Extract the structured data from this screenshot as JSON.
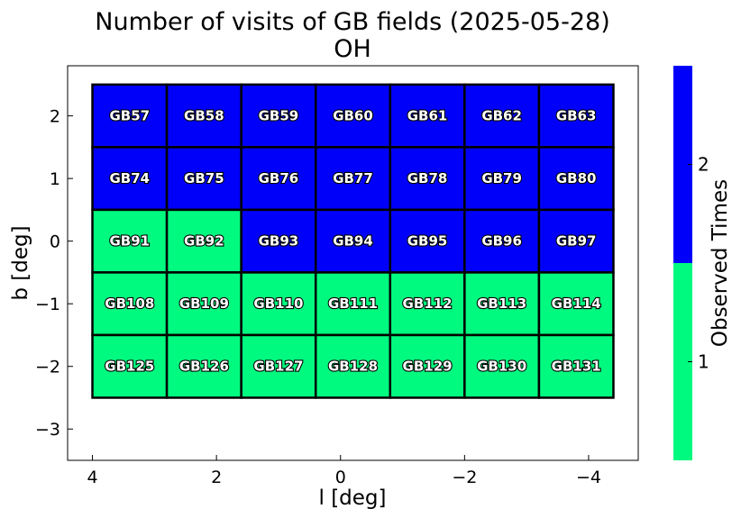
{
  "chart_data": {
    "type": "heatmap",
    "title": "Number of visits of GB fields (2025-05-28)",
    "subtitle": "OH",
    "xlabel": "l [deg]",
    "ylabel": "b [deg]",
    "xlim": [
      4.4,
      -4.8
    ],
    "ylim": [
      -3.5,
      2.8
    ],
    "x_ticks": [
      4,
      2,
      0,
      -2,
      -4
    ],
    "x_tick_labels": [
      "4",
      "2",
      "0",
      "−2",
      "−4"
    ],
    "y_ticks": [
      2,
      1,
      0,
      -1,
      -2,
      -3
    ],
    "y_tick_labels": [
      "2",
      "1",
      "0",
      "−1",
      "−2",
      "−3"
    ],
    "column_centers_l": [
      3.4,
      2.2,
      1.0,
      -0.2,
      -1.4,
      -2.6,
      -3.8
    ],
    "row_centers_b": [
      2.0,
      1.0,
      0.0,
      -1.0,
      -2.0
    ],
    "cell_width_deg": 1.2,
    "cell_height_deg": 1.0,
    "rows": [
      [
        {
          "name": "GB57",
          "visits": 2
        },
        {
          "name": "GB58",
          "visits": 2
        },
        {
          "name": "GB59",
          "visits": 2
        },
        {
          "name": "GB60",
          "visits": 2
        },
        {
          "name": "GB61",
          "visits": 2
        },
        {
          "name": "GB62",
          "visits": 2
        },
        {
          "name": "GB63",
          "visits": 2
        }
      ],
      [
        {
          "name": "GB74",
          "visits": 2
        },
        {
          "name": "GB75",
          "visits": 2
        },
        {
          "name": "GB76",
          "visits": 2
        },
        {
          "name": "GB77",
          "visits": 2
        },
        {
          "name": "GB78",
          "visits": 2
        },
        {
          "name": "GB79",
          "visits": 2
        },
        {
          "name": "GB80",
          "visits": 2
        }
      ],
      [
        {
          "name": "GB91",
          "visits": 1
        },
        {
          "name": "GB92",
          "visits": 1
        },
        {
          "name": "GB93",
          "visits": 2
        },
        {
          "name": "GB94",
          "visits": 2
        },
        {
          "name": "GB95",
          "visits": 2
        },
        {
          "name": "GB96",
          "visits": 2
        },
        {
          "name": "GB97",
          "visits": 2
        }
      ],
      [
        {
          "name": "GB108",
          "visits": 1
        },
        {
          "name": "GB109",
          "visits": 1
        },
        {
          "name": "GB110",
          "visits": 1
        },
        {
          "name": "GB111",
          "visits": 1
        },
        {
          "name": "GB112",
          "visits": 1
        },
        {
          "name": "GB113",
          "visits": 1
        },
        {
          "name": "GB114",
          "visits": 1
        }
      ],
      [
        {
          "name": "GB125",
          "visits": 1
        },
        {
          "name": "GB126",
          "visits": 1
        },
        {
          "name": "GB127",
          "visits": 1
        },
        {
          "name": "GB128",
          "visits": 1
        },
        {
          "name": "GB129",
          "visits": 1
        },
        {
          "name": "GB130",
          "visits": 1
        },
        {
          "name": "GB131",
          "visits": 1
        }
      ]
    ],
    "colorbar": {
      "label": "Observed Times",
      "ticks": [
        1,
        2
      ],
      "tick_labels": [
        "1",
        "2"
      ],
      "levels": [
        {
          "value": 1,
          "color": "#00fa7f"
        },
        {
          "value": 2,
          "color": "#0000fa"
        }
      ]
    },
    "grid": false,
    "cell_border_color": "#000000"
  }
}
